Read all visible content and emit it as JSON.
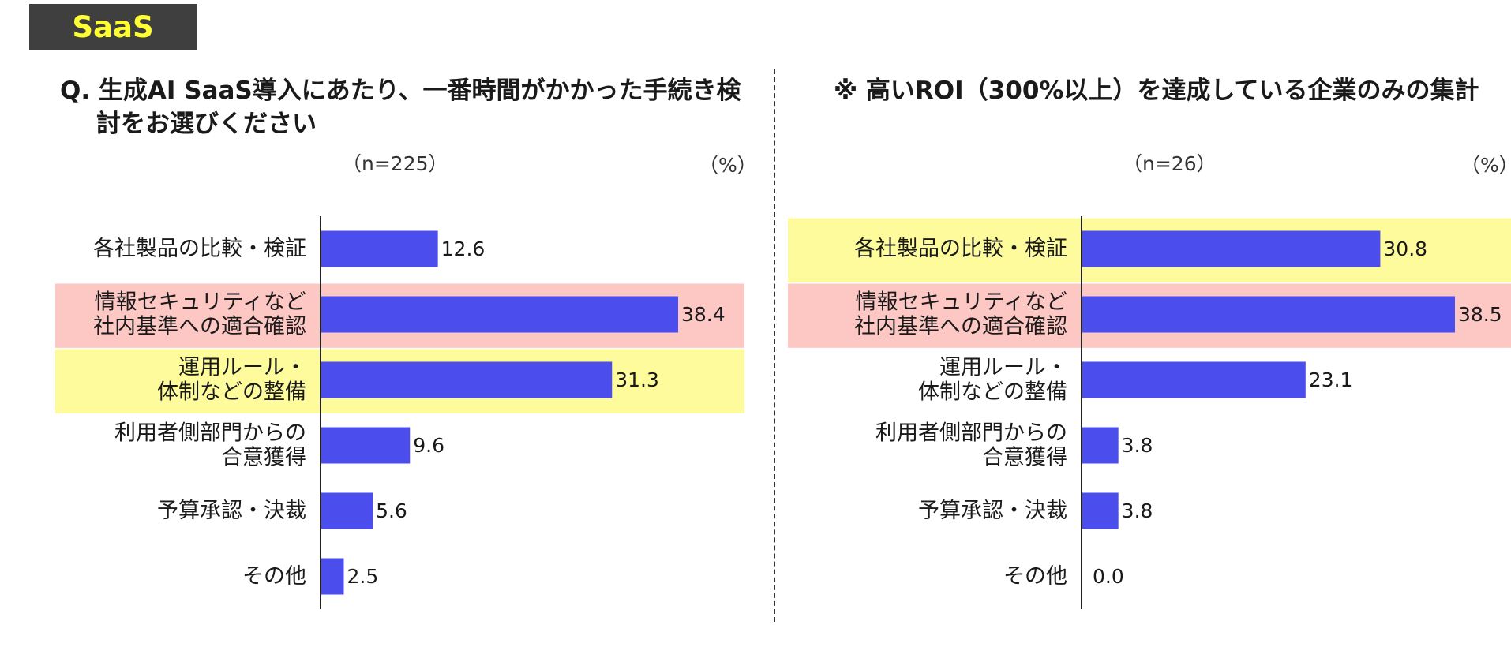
{
  "badge": "SaaS",
  "colors": {
    "bar": "#4b4ded",
    "highlight_yellow": "#fdfb9c",
    "highlight_pink": "#fdc7c4"
  },
  "chart_data": [
    {
      "type": "bar",
      "orientation": "horizontal",
      "title": "Q. 生成AI SaaS導入にあたり、一番時間がかかった手続き検討をお選びください",
      "n": "（n=225）",
      "unit": "（%）",
      "categories": [
        [
          "各社製品の比較・検証"
        ],
        [
          "情報セキュリティなど",
          "社内基準への適合確認"
        ],
        [
          "運用ルール・",
          "体制などの整備"
        ],
        [
          "利用者側部門からの",
          "合意獲得"
        ],
        [
          "予算承認・決裁"
        ],
        [
          "その他"
        ]
      ],
      "values": [
        12.6,
        38.4,
        31.3,
        9.6,
        5.6,
        2.5
      ],
      "value_labels": [
        "12.6",
        "38.4",
        "31.3",
        "9.6",
        "5.6",
        "2.5"
      ],
      "highlights": [
        "none",
        "pink",
        "yellow",
        "none",
        "none",
        "none"
      ],
      "xlim": [
        0,
        38.4
      ]
    },
    {
      "type": "bar",
      "orientation": "horizontal",
      "title": "※ 高いROI（300%以上）を達成している企業のみの集計",
      "n": "（n=26）",
      "unit": "（%）",
      "categories": [
        [
          "各社製品の比較・検証"
        ],
        [
          "情報セキュリティなど",
          "社内基準への適合確認"
        ],
        [
          "運用ルール・",
          "体制などの整備"
        ],
        [
          "利用者側部門からの",
          "合意獲得"
        ],
        [
          "予算承認・決裁"
        ],
        [
          "その他"
        ]
      ],
      "values": [
        30.8,
        38.5,
        23.1,
        3.8,
        3.8,
        0.0
      ],
      "value_labels": [
        "30.8",
        "38.5",
        "23.1",
        "3.8",
        "3.8",
        "0.0"
      ],
      "highlights": [
        "yellow",
        "pink",
        "none",
        "none",
        "none",
        "none"
      ],
      "xlim": [
        0,
        38.5
      ]
    }
  ]
}
